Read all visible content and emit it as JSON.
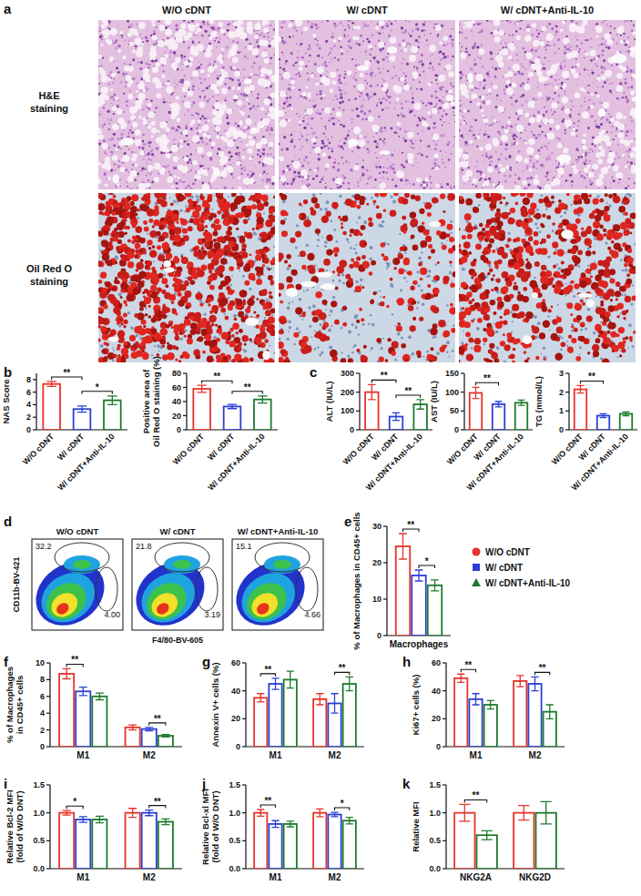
{
  "figure": {
    "panel_label": "a",
    "columns": [
      "W/O cDNT",
      "W/ cDNT",
      "W/ cDNT+Anti-IL-10"
    ],
    "rows": [
      [
        "H&E",
        "staining"
      ],
      [
        "Oil Red O",
        "staining"
      ]
    ]
  },
  "chart_data": [
    {
      "type": "bar",
      "panel_label": "b",
      "y_label": [
        "NAS Score"
      ],
      "ylim": [
        0,
        9
      ],
      "yticks": [
        0,
        2,
        4,
        6,
        8
      ],
      "categories": [
        "W/O cDNT",
        "W/ cDNT",
        "W/ cDNT+Anti-IL-10"
      ],
      "values": [
        7.3,
        3.3,
        4.7
      ],
      "errors": [
        0.4,
        0.5,
        0.7
      ],
      "colors": [
        "#e8332b",
        "#2b3fd6",
        "#1d7a2c"
      ],
      "significance": [
        {
          "bars": [
            0,
            1
          ],
          "label": "**"
        },
        {
          "bars": [
            1,
            2
          ],
          "label": "*"
        }
      ]
    },
    {
      "type": "bar",
      "y_label": [
        "Positive area of",
        "Oil Red O staining (%)"
      ],
      "ylim": [
        0,
        80
      ],
      "yticks": [
        0,
        20,
        40,
        60,
        80
      ],
      "categories": [
        "W/O cDNT",
        "W/ cDNT",
        "W/ cDNT+Anti-IL-10"
      ],
      "values": [
        58,
        33,
        43
      ],
      "errors": [
        5,
        3,
        5
      ],
      "colors": [
        "#e8332b",
        "#2b3fd6",
        "#1d7a2c"
      ],
      "significance": [
        {
          "bars": [
            0,
            1
          ],
          "label": "**"
        },
        {
          "bars": [
            1,
            2
          ],
          "label": "**"
        }
      ]
    },
    {
      "type": "bar",
      "panel_label": "c",
      "y_label": [
        "ALT (IU/L)"
      ],
      "ylim": [
        0,
        300
      ],
      "yticks": [
        0,
        100,
        200,
        300
      ],
      "categories": [
        "W/O cDNT",
        "W/ cDNT",
        "W/ cDNT+Anti-IL-10"
      ],
      "values": [
        200,
        70,
        135
      ],
      "errors": [
        40,
        20,
        25
      ],
      "colors": [
        "#e8332b",
        "#2b3fd6",
        "#1d7a2c"
      ],
      "significance": [
        {
          "bars": [
            0,
            1
          ],
          "label": "**"
        },
        {
          "bars": [
            1,
            2
          ],
          "label": "**"
        }
      ]
    },
    {
      "type": "bar",
      "y_label": [
        "AST (IU/L)"
      ],
      "ylim": [
        0,
        150
      ],
      "yticks": [
        0,
        50,
        100,
        150
      ],
      "categories": [
        "W/O cDNT",
        "W/ cDNT",
        "W/ cDNT+Anti-IL-10"
      ],
      "values": [
        98,
        68,
        72
      ],
      "errors": [
        15,
        7,
        7
      ],
      "colors": [
        "#e8332b",
        "#2b3fd6",
        "#1d7a2c"
      ],
      "significance": [
        {
          "bars": [
            0,
            1
          ],
          "label": "**"
        }
      ]
    },
    {
      "type": "bar",
      "y_label": [
        "TG (mmol/L)"
      ],
      "ylim": [
        0,
        3
      ],
      "yticks": [
        0,
        1,
        2,
        3
      ],
      "categories": [
        "W/O cDNT",
        "W/ cDNT",
        "W/ cDNT+Anti-IL-10"
      ],
      "values": [
        2.15,
        0.75,
        0.85
      ],
      "errors": [
        0.2,
        0.1,
        0.1
      ],
      "colors": [
        "#e8332b",
        "#2b3fd6",
        "#1d7a2c"
      ],
      "significance": [
        {
          "bars": [
            0,
            1
          ],
          "label": "**"
        }
      ]
    },
    {
      "type": "density",
      "panel_label": "d",
      "x_label": "F4/80-BV-605",
      "y_label": "CD11b-BV-421",
      "plots": [
        {
          "title": "W/O cDNT",
          "gates": [
            {
              "value": 32.2,
              "label": "32.2"
            },
            {
              "value": 4,
              "label": "4.00"
            }
          ]
        },
        {
          "title": "W/ cDNT",
          "gates": [
            {
              "value": 21.8,
              "label": "21.8"
            },
            {
              "value": 3.19,
              "label": "3.19"
            }
          ]
        },
        {
          "title": "W/ cDNT+Anti-IL-10",
          "gates": [
            {
              "value": 15.1,
              "label": "15.1"
            },
            {
              "value": 4.66,
              "label": "4.66"
            }
          ]
        }
      ]
    },
    {
      "type": "bar",
      "panel_label": "e",
      "y_label": [
        "% of Macrophages in CD45+ cells"
      ],
      "ylim": [
        0,
        30
      ],
      "yticks": [
        0,
        10,
        20,
        30
      ],
      "categories": [
        "Macrophages"
      ],
      "legend": "right",
      "series": [
        {
          "name": "W/O cDNT",
          "color": "#e8332b",
          "marker": "circle",
          "values": [
            24.5
          ],
          "errors": [
            3.5
          ]
        },
        {
          "name": "W/ cDNT",
          "color": "#2b3fd6",
          "marker": "square",
          "values": [
            16.5
          ],
          "errors": [
            1.5
          ]
        },
        {
          "name": "W/ cDNT+Anti-IL-10",
          "color": "#1d7a2c",
          "marker": "triangle",
          "values": [
            13.8
          ],
          "errors": [
            1.5
          ]
        }
      ],
      "significance": [
        {
          "group": 0,
          "bars": [
            0,
            1
          ],
          "label": "**"
        },
        {
          "group": 0,
          "bars": [
            1,
            2
          ],
          "label": "*"
        }
      ]
    },
    {
      "type": "bar",
      "panel_label": "f",
      "y_label": [
        "% of Macrophages",
        "in CD45+ cells"
      ],
      "ylim": [
        0,
        10
      ],
      "yticks": [
        0,
        2,
        4,
        6,
        8,
        10
      ],
      "categories": [
        "M1",
        "M2"
      ],
      "series": [
        {
          "name": "W/O cDNT",
          "color": "#e8332b",
          "values": [
            8.7,
            2.3
          ],
          "errors": [
            0.6,
            0.3
          ]
        },
        {
          "name": "W/ cDNT",
          "color": "#2b3fd6",
          "values": [
            6.6,
            2.1
          ],
          "errors": [
            0.5,
            0.2
          ]
        },
        {
          "name": "W/ cDNT+Anti-IL-10",
          "color": "#1d7a2c",
          "values": [
            6.0,
            1.3
          ],
          "errors": [
            0.4,
            0.15
          ]
        }
      ],
      "significance": [
        {
          "group": 0,
          "bars": [
            0,
            1
          ],
          "label": "**"
        },
        {
          "group": 1,
          "bars": [
            1,
            2
          ],
          "label": "**"
        }
      ]
    },
    {
      "type": "bar",
      "panel_label": "g",
      "y_label": [
        "Annexin V+ cells (%)"
      ],
      "ylim": [
        0,
        60
      ],
      "yticks": [
        0,
        20,
        40,
        60
      ],
      "categories": [
        "M1",
        "M2"
      ],
      "series": [
        {
          "name": "W/O cDNT",
          "color": "#e8332b",
          "values": [
            35,
            34
          ],
          "errors": [
            3,
            4
          ]
        },
        {
          "name": "W/ cDNT",
          "color": "#2b3fd6",
          "values": [
            45,
            31
          ],
          "errors": [
            4,
            7
          ]
        },
        {
          "name": "W/ cDNT+Anti-IL-10",
          "color": "#1d7a2c",
          "values": [
            48,
            45
          ],
          "errors": [
            6,
            5
          ]
        }
      ],
      "significance": [
        {
          "group": 0,
          "bars": [
            0,
            1
          ],
          "label": "**"
        },
        {
          "group": 1,
          "bars": [
            1,
            2
          ],
          "label": "**"
        }
      ]
    },
    {
      "type": "bar",
      "panel_label": "h",
      "y_label": [
        "Ki67+ cells (%)"
      ],
      "ylim": [
        0,
        60
      ],
      "yticks": [
        0,
        20,
        40,
        60
      ],
      "categories": [
        "M1",
        "M2"
      ],
      "series": [
        {
          "name": "W/O cDNT",
          "color": "#e8332b",
          "values": [
            49,
            47
          ],
          "errors": [
            3,
            4
          ]
        },
        {
          "name": "W/ cDNT",
          "color": "#2b3fd6",
          "values": [
            34,
            45
          ],
          "errors": [
            4,
            5
          ]
        },
        {
          "name": "W/ cDNT+Anti-IL-10",
          "color": "#1d7a2c",
          "values": [
            30,
            25
          ],
          "errors": [
            3,
            5
          ]
        }
      ],
      "significance": [
        {
          "group": 0,
          "bars": [
            0,
            1
          ],
          "label": "**"
        },
        {
          "group": 1,
          "bars": [
            1,
            2
          ],
          "label": "**"
        }
      ]
    },
    {
      "type": "bar",
      "panel_label": "i",
      "y_label": [
        "Relative Bcl-2 MFI",
        "(fold of W/O DNT)"
      ],
      "ylim": [
        0,
        1.5
      ],
      "yticks": [
        {
          "value": 0,
          "label": "0.0"
        },
        {
          "value": 0.5,
          "label": "0.5"
        },
        {
          "value": 1,
          "label": "1.0"
        },
        {
          "value": 1.5,
          "label": "1.5"
        }
      ],
      "categories": [
        "M1",
        "M2"
      ],
      "series": [
        {
          "name": "W/O cDNT",
          "color": "#e8332b",
          "values": [
            1.0,
            1.0
          ],
          "errors": [
            0.04,
            0.08
          ]
        },
        {
          "name": "W/ cDNT",
          "color": "#2b3fd6",
          "values": [
            0.88,
            1.0
          ],
          "errors": [
            0.05,
            0.05
          ]
        },
        {
          "name": "W/ cDNT+Anti-IL-10",
          "color": "#1d7a2c",
          "values": [
            0.88,
            0.84
          ],
          "errors": [
            0.06,
            0.05
          ]
        }
      ],
      "significance": [
        {
          "group": 0,
          "bars": [
            0,
            1
          ],
          "label": "*"
        },
        {
          "group": 1,
          "bars": [
            1,
            2
          ],
          "label": "**"
        }
      ]
    },
    {
      "type": "bar",
      "panel_label": "j",
      "y_label": [
        "Relative Bcl-xl MFI",
        "(fold of W/O DNT)"
      ],
      "ylim": [
        0,
        1.5
      ],
      "yticks": [
        {
          "value": 0,
          "label": "0.0"
        },
        {
          "value": 0.5,
          "label": "0.5"
        },
        {
          "value": 1,
          "label": "1.0"
        },
        {
          "value": 1.5,
          "label": "1.5"
        }
      ],
      "categories": [
        "M1",
        "M2"
      ],
      "series": [
        {
          "name": "W/O cDNT",
          "color": "#e8332b",
          "values": [
            1.0,
            1.0
          ],
          "errors": [
            0.06,
            0.07
          ]
        },
        {
          "name": "W/ cDNT",
          "color": "#2b3fd6",
          "values": [
            0.8,
            0.97
          ],
          "errors": [
            0.06,
            0.04
          ]
        },
        {
          "name": "W/ cDNT+Anti-IL-10",
          "color": "#1d7a2c",
          "values": [
            0.8,
            0.86
          ],
          "errors": [
            0.05,
            0.06
          ]
        }
      ],
      "significance": [
        {
          "group": 0,
          "bars": [
            0,
            1
          ],
          "label": "**"
        },
        {
          "group": 1,
          "bars": [
            1,
            2
          ],
          "label": "*"
        }
      ]
    },
    {
      "type": "bar",
      "panel_label": "k",
      "y_label": [
        "Relative MFI"
      ],
      "ylim": [
        0,
        1.5
      ],
      "yticks": [
        {
          "value": 0,
          "label": "0.0"
        },
        {
          "value": 0.5,
          "label": "0.5"
        },
        {
          "value": 1,
          "label": "1.0"
        },
        {
          "value": 1.5,
          "label": "1.5"
        }
      ],
      "categories": [
        "NKG2A",
        "NKG2D"
      ],
      "series": [
        {
          "name": "W/O cDNT",
          "color": "#e8332b",
          "values": [
            1.0,
            1.0
          ],
          "errors": [
            0.15,
            0.13
          ]
        },
        {
          "name": "W/ cDNT+Anti-IL-10",
          "color": "#1d7a2c",
          "values": [
            0.6,
            1.0
          ],
          "errors": [
            0.08,
            0.2
          ]
        }
      ],
      "significance": [
        {
          "group": 0,
          "bars": [
            0,
            1
          ],
          "label": "**"
        }
      ]
    }
  ]
}
